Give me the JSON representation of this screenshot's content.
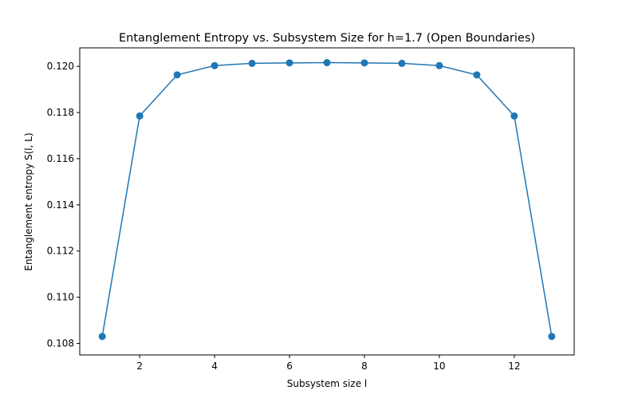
{
  "chart_data": {
    "type": "line",
    "title": "Entanglement Entropy vs. Subsystem Size for h=1.7 (Open Boundaries)",
    "xlabel": "Subsystem size l",
    "ylabel": "Entanglement entropy S(l, L)",
    "xlim": [
      0.4,
      13.6
    ],
    "ylim": [
      0.1075,
      0.1208
    ],
    "xticks": [
      2,
      4,
      6,
      8,
      10,
      12
    ],
    "xtick_labels": [
      "2",
      "4",
      "6",
      "8",
      "10",
      "12"
    ],
    "yticks": [
      0.108,
      0.11,
      0.112,
      0.114,
      0.116,
      0.118,
      0.12
    ],
    "ytick_labels": [
      "0.108",
      "0.110",
      "0.112",
      "0.114",
      "0.116",
      "0.118",
      "0.120"
    ],
    "grid": false,
    "marker": "circle",
    "color": "#1f77b4",
    "series": [
      {
        "x": [
          1,
          2,
          3,
          4,
          5,
          6,
          7,
          8,
          9,
          10,
          11,
          12,
          13
        ],
        "y": [
          0.1083,
          0.11785,
          0.11963,
          0.12003,
          0.12013,
          0.12015,
          0.12016,
          0.12015,
          0.12013,
          0.12003,
          0.11963,
          0.11785,
          0.1083
        ]
      }
    ]
  }
}
